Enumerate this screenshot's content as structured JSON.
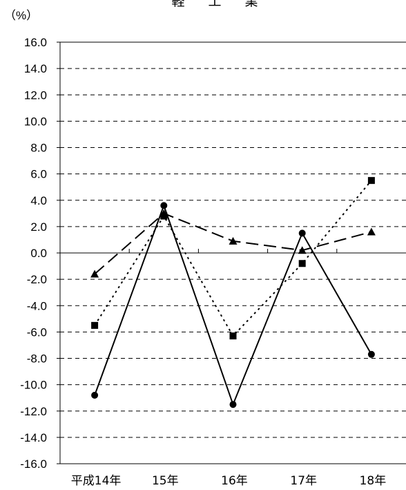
{
  "chart_data": {
    "type": "line",
    "title": "軽 工 業",
    "unit_label": "（%）",
    "ylim": [
      -16.0,
      16.0
    ],
    "y_ticks": [
      "16.0",
      "14.0",
      "12.0",
      "10.0",
      "8.0",
      "6.0",
      "4.0",
      "2.0",
      "0.0",
      "-2.0",
      "-4.0",
      "-6.0",
      "-8.0",
      "-10.0",
      "-12.0",
      "-14.0",
      "-16.0"
    ],
    "y_tick_values": [
      16,
      14,
      12,
      10,
      8,
      6,
      4,
      2,
      0,
      -2,
      -4,
      -6,
      -8,
      -10,
      -12,
      -14,
      -16
    ],
    "categories": [
      "平成14年",
      "15年",
      "16年",
      "17年",
      "18年"
    ],
    "grid": "horizontal dashed",
    "series": [
      {
        "marker": "circle",
        "line_style": "solid",
        "values": [
          -10.8,
          3.6,
          -11.5,
          1.5,
          -7.7
        ]
      },
      {
        "marker": "square",
        "line_style": "dotted",
        "values": [
          -5.5,
          2.8,
          -6.3,
          -0.8,
          5.5
        ]
      },
      {
        "marker": "triangle",
        "line_style": "dashed",
        "values": [
          -1.6,
          3.0,
          0.9,
          0.2,
          1.6
        ]
      }
    ]
  }
}
